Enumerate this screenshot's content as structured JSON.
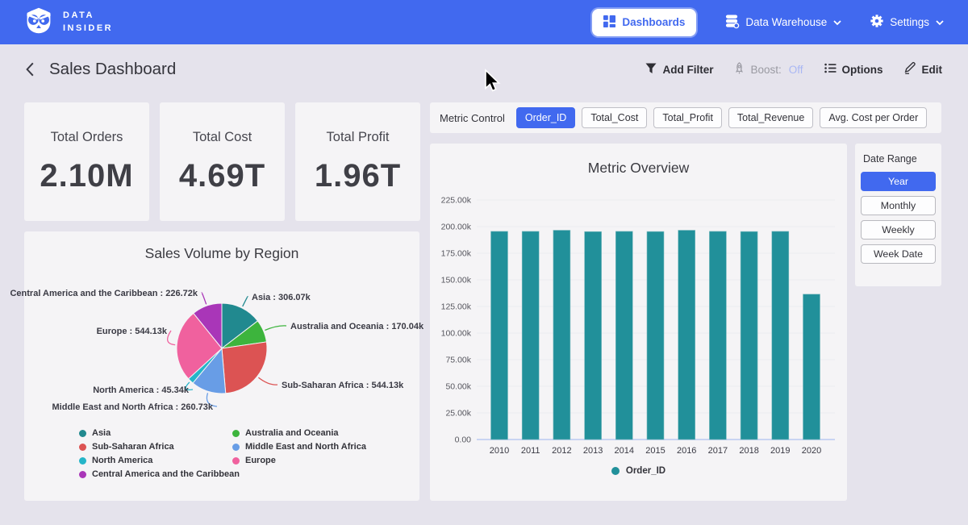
{
  "navbar": {
    "brand_line1": "DATA",
    "brand_line2": "INSIDER",
    "dashboards_label": "Dashboards",
    "data_warehouse_label": "Data Warehouse",
    "settings_label": "Settings"
  },
  "header": {
    "title": "Sales Dashboard",
    "add_filter_label": "Add Filter",
    "boost_label": "Boost:",
    "boost_state": "Off",
    "options_label": "Options",
    "edit_label": "Edit"
  },
  "kpis": [
    {
      "label": "Total Orders",
      "value": "2.10M"
    },
    {
      "label": "Total Cost",
      "value": "4.69T"
    },
    {
      "label": "Total Profit",
      "value": "1.96T"
    }
  ],
  "metric_control": {
    "label": "Metric Control",
    "chips": [
      {
        "label": "Order_ID",
        "selected": true
      },
      {
        "label": "Total_Cost",
        "selected": false
      },
      {
        "label": "Total_Profit",
        "selected": false
      },
      {
        "label": "Total_Revenue",
        "selected": false
      },
      {
        "label": "Avg. Cost per Order",
        "selected": false
      }
    ]
  },
  "date_range": {
    "label": "Date Range",
    "options": [
      {
        "label": "Year",
        "selected": true
      },
      {
        "label": "Monthly",
        "selected": false
      },
      {
        "label": "Weekly",
        "selected": false
      },
      {
        "label": "Week Date",
        "selected": false
      }
    ]
  },
  "colors": {
    "accent_blue": "#4169ef",
    "bar_teal": "#21909a",
    "boost_off": "#a9b7f4",
    "card_bg": "#f5f4f6",
    "page_bg": "#e5e3ec"
  },
  "chart_data": [
    {
      "type": "pie",
      "title": "Sales Volume by Region",
      "unit": "k",
      "slices": [
        {
          "label": "Asia",
          "value": 306.07,
          "display": "Asia : 306.07k",
          "color": "#21898f"
        },
        {
          "label": "Australia and Oceania",
          "value": 170.04,
          "display": "Australia and Oceania : 170.04k",
          "color": "#3db43d"
        },
        {
          "label": "Sub-Saharan Africa",
          "value": 544.13,
          "display": "Sub-Saharan Africa : 544.13k",
          "color": "#dc5353"
        },
        {
          "label": "Middle East and North Africa",
          "value": 260.73,
          "display": "Middle East and North Africa : 260.73k",
          "color": "#689de6"
        },
        {
          "label": "North America",
          "value": 45.34,
          "display": "North America : 45.34k",
          "color": "#25b5c8"
        },
        {
          "label": "Europe",
          "value": 544.13,
          "display": "Europe : 544.13k",
          "color": "#f0619e"
        },
        {
          "label": "Central America and the Caribbean",
          "value": 226.72,
          "display": "Central America and the Caribbean : 226.72k",
          "color": "#a936b8"
        }
      ],
      "legend_columns": [
        [
          "Asia",
          "Sub-Saharan Africa",
          "North America",
          "Central America and the Caribbean"
        ],
        [
          "Australia and Oceania",
          "Middle East and North Africa",
          "Europe"
        ]
      ],
      "start_angle_deg": 0,
      "direction": "clockwise"
    },
    {
      "type": "bar",
      "title": "Metric Overview",
      "categories": [
        "2010",
        "2011",
        "2012",
        "2013",
        "2014",
        "2015",
        "2016",
        "2017",
        "2018",
        "2019",
        "2020"
      ],
      "values": [
        195.5,
        195.5,
        196.6,
        195.3,
        195.5,
        195.4,
        196.6,
        195.5,
        195.4,
        195.5,
        136.5
      ],
      "unit": "k",
      "xlabel": "",
      "ylabel": "",
      "ylim": [
        0,
        237.5
      ],
      "ytick_labels": [
        "225.00k",
        "200.00k",
        "175.00k",
        "150.00k",
        "125.00k",
        "100.00k",
        "75.00k",
        "50.00k",
        "25.00k",
        "0.00"
      ],
      "ytick_values": [
        225,
        200,
        175,
        150,
        125,
        100,
        75,
        50,
        25,
        0
      ],
      "grid": true,
      "legend": [
        {
          "label": "Order_ID",
          "color": "#21909a"
        }
      ],
      "legend_position": "bottom"
    }
  ]
}
